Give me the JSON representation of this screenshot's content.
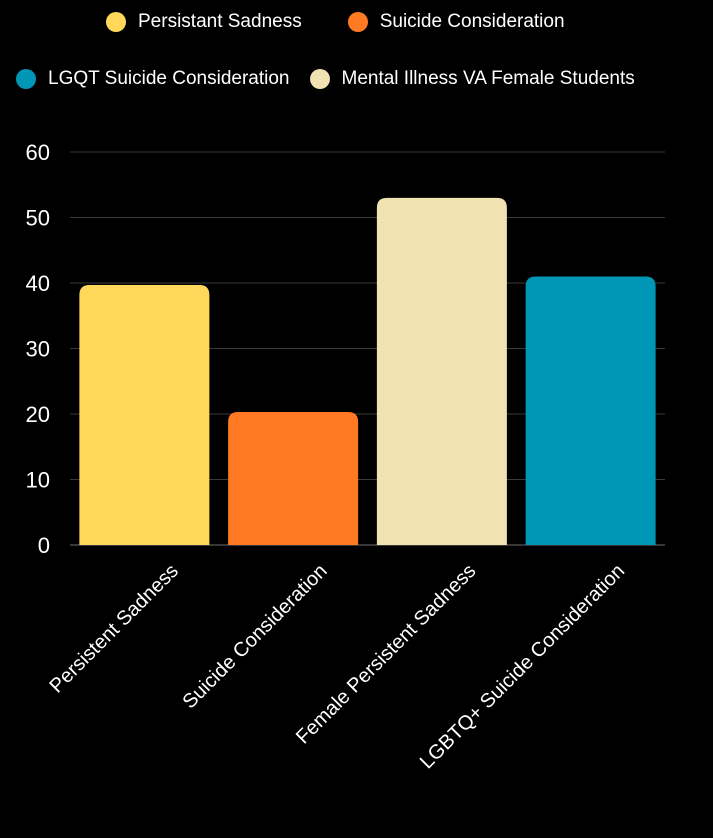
{
  "chart_data": {
    "type": "bar",
    "title": "",
    "xlabel": "",
    "ylabel": "",
    "categories": [
      "Persistent Sadness",
      "Suicide Consideration",
      "Female Persistent Sadness",
      "LGBTQ+ Suicide Consideration"
    ],
    "values": [
      39.7,
      20.3,
      53.0,
      41.0
    ],
    "colors": [
      "#FFD85A",
      "#FF7A22",
      "#F1E2B2",
      "#0096B6"
    ],
    "ylim": [
      0,
      60
    ],
    "yticks": [
      0,
      10,
      20,
      30,
      40,
      50,
      60
    ],
    "grid": true,
    "legend_position": "top",
    "legend": [
      {
        "label": "Persistant Sadness",
        "color": "#FFD85A"
      },
      {
        "label": "Suicide Consideration",
        "color": "#FF7A22"
      },
      {
        "label": "LGQT Suicide Consideration",
        "color": "#0096B6"
      },
      {
        "label": "Mental Illness VA Female Students",
        "color": "#F1E2B2"
      }
    ]
  }
}
